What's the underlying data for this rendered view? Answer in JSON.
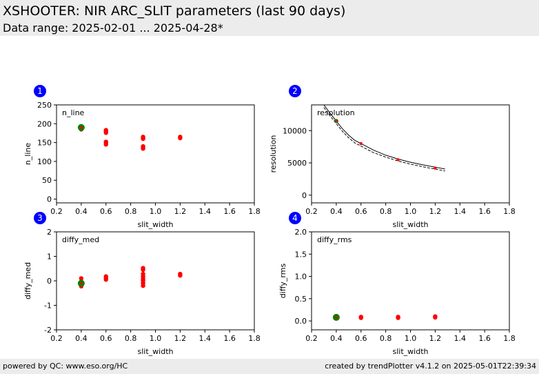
{
  "header": {
    "title": "XSHOOTER: NIR ARC_SLIT parameters (last 90 days)",
    "subtitle": "Data range: 2025-02-01 ... 2025-04-28*"
  },
  "footer": {
    "left": "powered by QC: www.eso.org/HC",
    "right": "created by trendPlotter v4.1.2 on 2025-05-01T22:39:34"
  },
  "colors": {
    "marker_badge": "#0000ff",
    "data_points": "#ff0000",
    "latest_point": "#008000",
    "background": "#ffffff",
    "header_bg": "#ececec"
  },
  "chart_data": [
    {
      "id": "1",
      "type": "scatter",
      "panel_label": "n_line",
      "xlabel": "slit_width",
      "ylabel": "n_line",
      "xlim": [
        0.2,
        1.8
      ],
      "ylim": [
        -10,
        250
      ],
      "xticks": [
        0.2,
        0.4,
        0.6,
        0.8,
        1.0,
        1.2,
        1.4,
        1.6,
        1.8
      ],
      "yticks": [
        0,
        50,
        100,
        150,
        200,
        250
      ],
      "tick_format": [
        "0.2",
        "0.4",
        "0.6",
        "0.8",
        "1.0",
        "1.2",
        "1.4",
        "1.6",
        "1.8"
      ],
      "points": [
        [
          0.4,
          185
        ],
        [
          0.4,
          188
        ],
        [
          0.4,
          191
        ],
        [
          0.4,
          193
        ],
        [
          0.6,
          145
        ],
        [
          0.6,
          149
        ],
        [
          0.6,
          152
        ],
        [
          0.6,
          176
        ],
        [
          0.6,
          180
        ],
        [
          0.6,
          183
        ],
        [
          0.9,
          134
        ],
        [
          0.9,
          137
        ],
        [
          0.9,
          140
        ],
        [
          0.9,
          160
        ],
        [
          0.9,
          163
        ],
        [
          0.9,
          165
        ],
        [
          1.2,
          162
        ],
        [
          1.2,
          165
        ]
      ],
      "latest": [
        0.4,
        190
      ]
    },
    {
      "id": "2",
      "type": "scatter",
      "panel_label": "resolution",
      "xlabel": "slit_width",
      "ylabel": "resolution",
      "xlim": [
        0.2,
        1.8
      ],
      "ylim": [
        -1200,
        14000
      ],
      "xticks": [
        0.2,
        0.4,
        0.6,
        0.8,
        1.0,
        1.2,
        1.4,
        1.6,
        1.8
      ],
      "yticks": [
        0,
        5000,
        10000
      ],
      "tick_format": [
        "0.2",
        "0.4",
        "0.6",
        "0.8",
        "1.0",
        "1.2",
        "1.4",
        "1.6",
        "1.8"
      ],
      "points": [
        [
          0.4,
          11500
        ],
        [
          0.6,
          8000
        ],
        [
          0.9,
          5500
        ],
        [
          1.2,
          4200
        ]
      ],
      "latest": [
        0.4,
        11500
      ],
      "reference_curves": [
        {
          "style": "solid",
          "x": [
            0.3,
            0.35,
            0.4,
            0.45,
            0.5,
            0.55,
            0.6,
            0.7,
            0.8,
            0.9,
            1.0,
            1.1,
            1.2,
            1.28
          ],
          "y": [
            14000,
            12700,
            11500,
            10300,
            9300,
            8500,
            8000,
            7000,
            6200,
            5600,
            5100,
            4700,
            4350,
            4050
          ]
        },
        {
          "style": "dashed",
          "x": [
            0.3,
            0.35,
            0.4,
            0.45,
            0.5,
            0.55,
            0.6,
            0.7,
            0.8,
            0.9,
            1.0,
            1.1,
            1.2,
            1.28
          ],
          "y": [
            13600,
            12300,
            11100,
            9900,
            8900,
            8100,
            7600,
            6600,
            5900,
            5300,
            4800,
            4400,
            4050,
            3750
          ]
        }
      ]
    },
    {
      "id": "3",
      "type": "scatter",
      "panel_label": "diffy_med",
      "xlabel": "slit_width",
      "ylabel": "diffy_med",
      "xlim": [
        0.2,
        1.8
      ],
      "ylim": [
        -2,
        2
      ],
      "xticks": [
        0.2,
        0.4,
        0.6,
        0.8,
        1.0,
        1.2,
        1.4,
        1.6,
        1.8
      ],
      "yticks": [
        -2,
        -1,
        0,
        1,
        2
      ],
      "tick_format": [
        "0.2",
        "0.4",
        "0.6",
        "0.8",
        "1.0",
        "1.2",
        "1.4",
        "1.6",
        "1.8"
      ],
      "points": [
        [
          0.4,
          -0.22
        ],
        [
          0.4,
          -0.15
        ],
        [
          0.4,
          -0.05
        ],
        [
          0.4,
          0.1
        ],
        [
          0.6,
          0.05
        ],
        [
          0.6,
          0.12
        ],
        [
          0.6,
          0.18
        ],
        [
          0.9,
          -0.2
        ],
        [
          0.9,
          -0.1
        ],
        [
          0.9,
          0.0
        ],
        [
          0.9,
          0.08
        ],
        [
          0.9,
          0.18
        ],
        [
          0.9,
          0.28
        ],
        [
          0.9,
          0.45
        ],
        [
          0.9,
          0.52
        ],
        [
          1.2,
          0.22
        ],
        [
          1.2,
          0.28
        ]
      ],
      "latest": [
        0.4,
        -0.1
      ]
    },
    {
      "id": "4",
      "type": "scatter",
      "panel_label": "diffy_rms",
      "xlabel": "slit_width",
      "ylabel": "diffy_rms",
      "xlim": [
        0.2,
        1.8
      ],
      "ylim": [
        -0.2,
        2.0
      ],
      "xticks": [
        0.2,
        0.4,
        0.6,
        0.8,
        1.0,
        1.2,
        1.4,
        1.6,
        1.8
      ],
      "yticks": [
        0.0,
        0.5,
        1.0,
        1.5,
        2.0
      ],
      "tick_format": [
        "0.2",
        "0.4",
        "0.6",
        "0.8",
        "1.0",
        "1.2",
        "1.4",
        "1.6",
        "1.8"
      ],
      "ytick_format": [
        "0.0",
        "0.5",
        "1.0",
        "1.5",
        "2.0"
      ],
      "points": [
        [
          0.4,
          0.07
        ],
        [
          0.4,
          0.09
        ],
        [
          0.6,
          0.07
        ],
        [
          0.6,
          0.09
        ],
        [
          0.9,
          0.07
        ],
        [
          0.9,
          0.09
        ],
        [
          1.2,
          0.08
        ],
        [
          1.2,
          0.1
        ]
      ],
      "latest": [
        0.4,
        0.08
      ]
    }
  ]
}
